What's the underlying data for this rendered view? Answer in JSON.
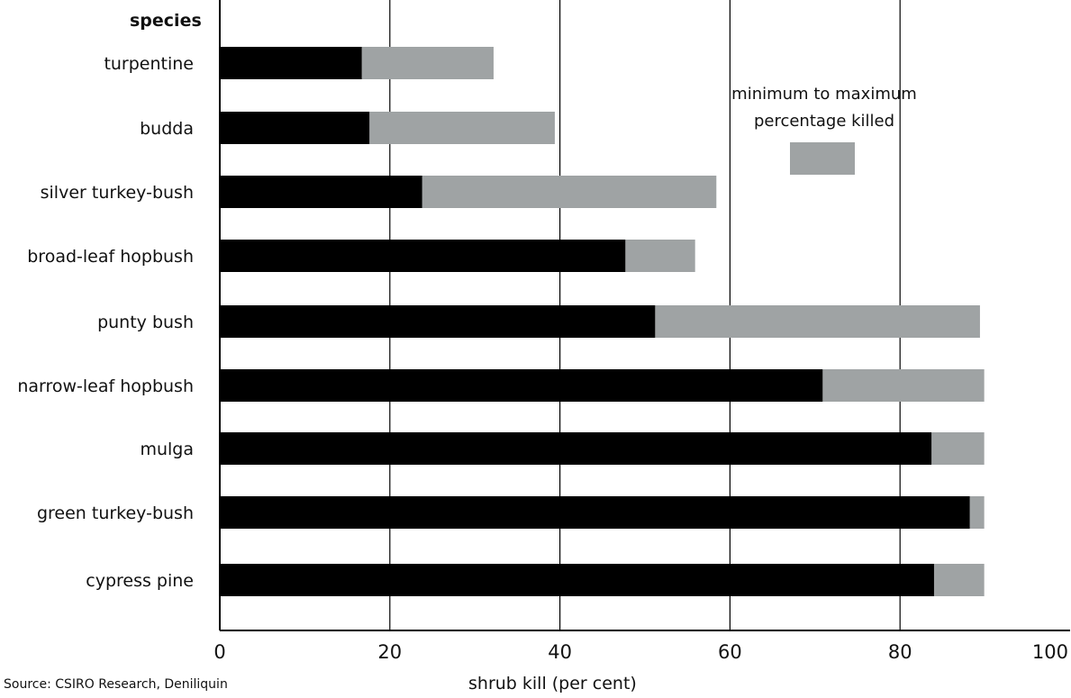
{
  "chart_data": {
    "type": "bar",
    "orientation": "horizontal",
    "stacked": true,
    "title": "",
    "category_axis_label": "species",
    "xlabel": "shrub kill (per cent)",
    "xlim": [
      0,
      100
    ],
    "xticks": [
      0,
      20,
      40,
      60,
      80,
      100
    ],
    "grid": "vertical lines at 20, 40, 60, 80",
    "categories": [
      "turpentine",
      "budda",
      "silver turkey-bush",
      "broad-leaf hopbush",
      "punty bush",
      "narrow-leaf hopbush",
      "mulga",
      "green turkey-bush",
      "cypress pine"
    ],
    "series": [
      {
        "name": "",
        "color": "#000000",
        "values": [
          16.7,
          17.6,
          23.8,
          47.7,
          51.2,
          70.9,
          83.7,
          88.2,
          84.0
        ]
      },
      {
        "name": "minimum to maximum percentage killed",
        "color": "#9fa3a4",
        "start": [
          16.7,
          17.6,
          23.8,
          47.7,
          51.2,
          70.9,
          83.7,
          88.2,
          84.0
        ],
        "end": [
          32.2,
          39.4,
          58.4,
          55.9,
          89.4,
          89.9,
          89.9,
          89.9,
          89.9
        ]
      }
    ],
    "legend": {
      "label": "minimum to maximum percentage killed",
      "position": "upper-right"
    }
  },
  "source": "Source: CSIRO Research, Deniliquin"
}
